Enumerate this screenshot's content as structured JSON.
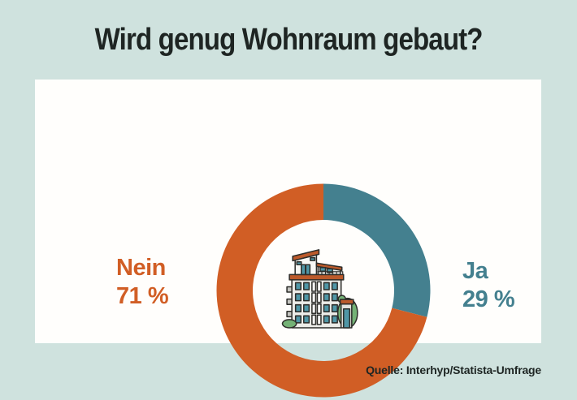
{
  "title": "Wird genug Wohnraum gebaut?",
  "source_note": "Quelle: Interhyp/Statista-Umfrage",
  "colors": {
    "background": "#cfe2de",
    "card": "#fffefc",
    "title_text": "#1e2523",
    "nein_orange": "#d15e25",
    "ja_teal": "#44808f"
  },
  "icons": {
    "center_icon": "apartment-building-icon"
  },
  "chart_data": {
    "type": "pie",
    "variant": "donut",
    "title": "Wird genug Wohnraum gebaut?",
    "categories": [
      "Nein",
      "Ja"
    ],
    "values": [
      71,
      29
    ],
    "unit": "%",
    "slices": [
      {
        "label": "Ja",
        "value": 29,
        "color": "#44808f"
      },
      {
        "label": "Nein",
        "value": 71,
        "color": "#d15e25"
      }
    ],
    "slice_order_note": "drawn clockwise starting at 12 o'clock",
    "labels": {
      "left": {
        "name": "Nein",
        "value_text": "71 %",
        "color": "#d15e25"
      },
      "right": {
        "name": "Ja",
        "value_text": "29 %",
        "color": "#44808f"
      }
    },
    "legend_position": "side labels left and right of donut",
    "center_icon": "apartment-building-icon",
    "source": "Quelle: Interhyp/Statista-Umfrage"
  }
}
